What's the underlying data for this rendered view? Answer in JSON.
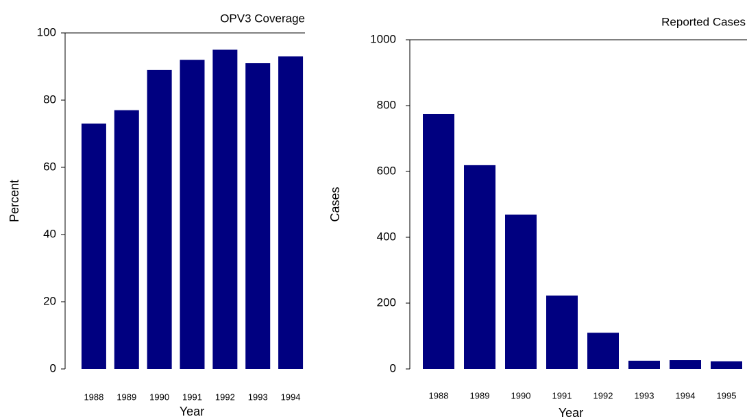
{
  "chart_data": [
    {
      "type": "bar",
      "title": "OPV3 Coverage",
      "x_label": "Year",
      "y_label": "Percent",
      "categories": [
        "1988",
        "1989",
        "1990",
        "1991",
        "1992",
        "1993",
        "1994"
      ],
      "values": [
        73,
        77,
        89,
        92,
        95,
        91,
        93
      ],
      "color": "#000080",
      "ylim": [
        0,
        100
      ],
      "yticks": [
        0,
        20,
        40,
        60,
        80,
        100
      ]
    },
    {
      "type": "bar",
      "title": "Reported Cases",
      "x_label": "Year",
      "y_label": "Cases",
      "categories": [
        "1988",
        "1989",
        "1990",
        "1991",
        "1992",
        "1993",
        "1994",
        "1995"
      ],
      "values": [
        775,
        619,
        469,
        223,
        110,
        25,
        27,
        23
      ],
      "color": "#000080",
      "ylim": [
        0,
        1000
      ],
      "yticks": [
        0,
        200,
        400,
        600,
        800,
        1000
      ]
    }
  ]
}
